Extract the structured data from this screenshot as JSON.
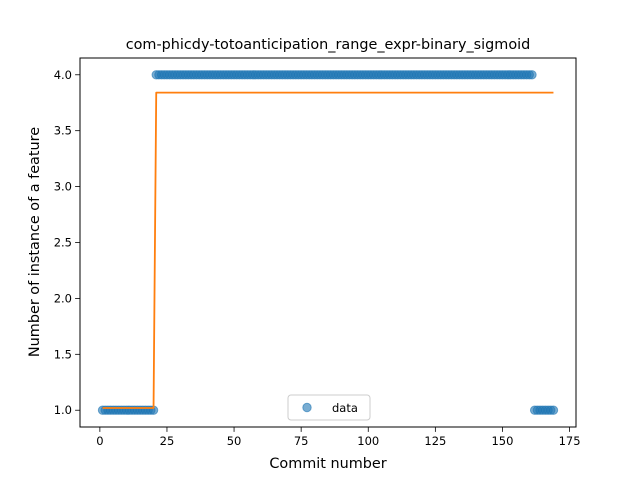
{
  "chart_data": {
    "type": "scatter",
    "title": "com-phicdy-totoanticipation_range_expr-binary_sigmoid",
    "xlabel": "Commit number",
    "ylabel": "Number of instance of a feature",
    "xlim": [
      -7.4,
      177.4
    ],
    "ylim": [
      0.85,
      4.15
    ],
    "x_ticks": [
      0,
      25,
      50,
      75,
      100,
      125,
      150,
      175
    ],
    "y_ticks": [
      1.0,
      1.5,
      2.0,
      2.5,
      3.0,
      3.5,
      4.0
    ],
    "x_tick_labels": [
      "0",
      "25",
      "50",
      "75",
      "100",
      "125",
      "150",
      "175"
    ],
    "y_tick_labels": [
      "1.0",
      "1.5",
      "2.0",
      "2.5",
      "3.0",
      "3.5",
      "4.0"
    ],
    "legend": {
      "position": "lower center",
      "entries": [
        "data"
      ]
    },
    "series": [
      {
        "name": "data",
        "kind": "points",
        "color": "#1f77b4",
        "segments": [
          {
            "x_from": 1,
            "x_to": 20,
            "y": 1.0
          },
          {
            "x_from": 21,
            "x_to": 161,
            "y": 4.0
          },
          {
            "x_from": 162,
            "x_to": 169,
            "y": 1.0
          }
        ]
      },
      {
        "kind": "line",
        "color": "#ff7f0e",
        "x": [
          1,
          20,
          21,
          169
        ],
        "y": [
          1.02,
          1.02,
          3.84,
          3.84
        ]
      }
    ],
    "grid": false
  }
}
